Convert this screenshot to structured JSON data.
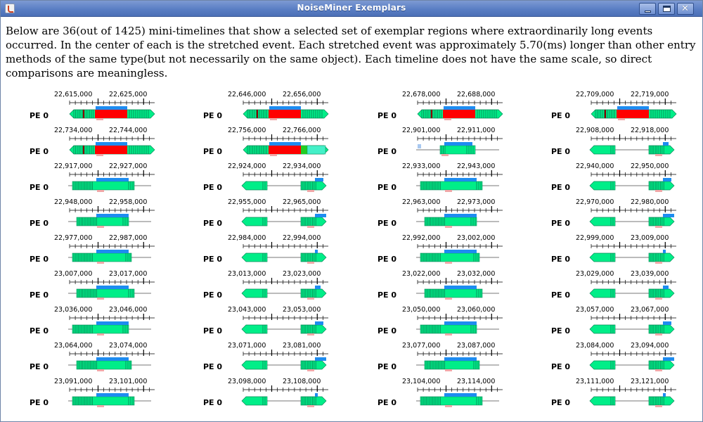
{
  "window": {
    "title": "NoiseMiner Exemplars"
  },
  "description": "Below are 36(out of 1425) mini-timelines that show a selected set of exemplar regions where extraordinarily long events occurred. In the center of each is the stretched event. Each stretched event was approximately 5.70(ms) longer than other entry methods of the same type(but not necessarily on the same object). Each timeline does not have the same scale, so direct comparisons are meaningless.",
  "colors": {
    "entry_green": "#00ee88",
    "stretched_red": "#ff0000",
    "blue_bar": "#1e8cf0",
    "pink_marker": "#f0a8a8",
    "idle_line": "#4a4a4a",
    "teal_marker": "#1aa086"
  },
  "timelines": [
    {
      "pe": "PE 0",
      "t1": "22,615,000",
      "t2": "22,625,000",
      "kind": "red"
    },
    {
      "pe": "PE 0",
      "t1": "22,646,000",
      "t2": "22,656,000",
      "kind": "red"
    },
    {
      "pe": "PE 0",
      "t1": "22,678,000",
      "t2": "22,688,000",
      "kind": "red"
    },
    {
      "pe": "PE 0",
      "t1": "22,709,000",
      "t2": "22,719,000",
      "kind": "red"
    },
    {
      "pe": "PE 0",
      "t1": "22,734,000",
      "t2": "22,744,000",
      "kind": "red"
    },
    {
      "pe": "PE 0",
      "t1": "22,756,000",
      "t2": "22,766,000",
      "kind": "red-green"
    },
    {
      "pe": "PE 0",
      "t1": "22,901,000",
      "t2": "22,911,000",
      "kind": "center"
    },
    {
      "pe": "PE 0",
      "t1": "22,908,000",
      "t2": "22,918,000",
      "kind": "right"
    },
    {
      "pe": "PE 0",
      "t1": "22,917,000",
      "t2": "22,927,000",
      "kind": "left"
    },
    {
      "pe": "PE 0",
      "t1": "22,924,000",
      "t2": "22,934,000",
      "kind": "right"
    },
    {
      "pe": "PE 0",
      "t1": "22,933,000",
      "t2": "22,943,000",
      "kind": "left"
    },
    {
      "pe": "PE 0",
      "t1": "22,940,000",
      "t2": "22,950,000",
      "kind": "right"
    },
    {
      "pe": "PE 0",
      "t1": "22,948,000",
      "t2": "22,958,000",
      "kind": "left"
    },
    {
      "pe": "PE 0",
      "t1": "22,955,000",
      "t2": "22,965,000",
      "kind": "right"
    },
    {
      "pe": "PE 0",
      "t1": "22,963,000",
      "t2": "22,973,000",
      "kind": "left"
    },
    {
      "pe": "PE 0",
      "t1": "22,970,000",
      "t2": "22,980,000",
      "kind": "right"
    },
    {
      "pe": "PE 0",
      "t1": "22,977,000",
      "t2": "22,987,000",
      "kind": "left"
    },
    {
      "pe": "PE 0",
      "t1": "22,984,000",
      "t2": "22,994,000",
      "kind": "right"
    },
    {
      "pe": "PE 0",
      "t1": "22,992,000",
      "t2": "23,002,000",
      "kind": "left"
    },
    {
      "pe": "PE 0",
      "t1": "22,999,000",
      "t2": "23,009,000",
      "kind": "right"
    },
    {
      "pe": "PE 0",
      "t1": "23,007,000",
      "t2": "23,017,000",
      "kind": "left"
    },
    {
      "pe": "PE 0",
      "t1": "23,013,000",
      "t2": "23,023,000",
      "kind": "right"
    },
    {
      "pe": "PE 0",
      "t1": "23,022,000",
      "t2": "23,032,000",
      "kind": "left"
    },
    {
      "pe": "PE 0",
      "t1": "23,029,000",
      "t2": "23,039,000",
      "kind": "right"
    },
    {
      "pe": "PE 0",
      "t1": "23,036,000",
      "t2": "23,046,000",
      "kind": "left"
    },
    {
      "pe": "PE 0",
      "t1": "23,043,000",
      "t2": "23,053,000",
      "kind": "right"
    },
    {
      "pe": "PE 0",
      "t1": "23,050,000",
      "t2": "23,060,000",
      "kind": "left"
    },
    {
      "pe": "PE 0",
      "t1": "23,057,000",
      "t2": "23,067,000",
      "kind": "right"
    },
    {
      "pe": "PE 0",
      "t1": "23,064,000",
      "t2": "23,074,000",
      "kind": "left"
    },
    {
      "pe": "PE 0",
      "t1": "23,071,000",
      "t2": "23,081,000",
      "kind": "right"
    },
    {
      "pe": "PE 0",
      "t1": "23,077,000",
      "t2": "23,087,000",
      "kind": "left"
    },
    {
      "pe": "PE 0",
      "t1": "23,084,000",
      "t2": "23,094,000",
      "kind": "right"
    },
    {
      "pe": "PE 0",
      "t1": "23,091,000",
      "t2": "23,101,000",
      "kind": "left"
    },
    {
      "pe": "PE 0",
      "t1": "23,098,000",
      "t2": "23,108,000",
      "kind": "right"
    },
    {
      "pe": "PE 0",
      "t1": "23,104,000",
      "t2": "23,114,000",
      "kind": "left"
    },
    {
      "pe": "PE 0",
      "t1": "23,111,000",
      "t2": "23,121,000",
      "kind": "right"
    }
  ]
}
